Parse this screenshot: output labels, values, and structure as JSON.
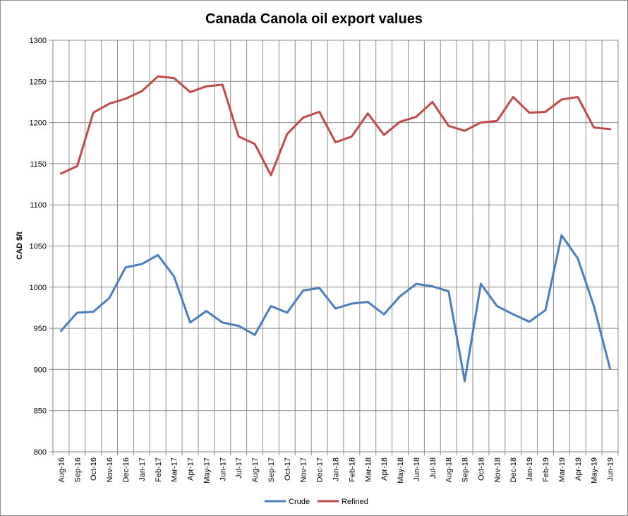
{
  "chart_data": {
    "type": "line",
    "title": "Canada Canola oil export values",
    "xlabel": "",
    "ylabel": "CAD $/t",
    "ylim": [
      800,
      1300
    ],
    "ytick_step": 50,
    "grid": true,
    "legend_position": "bottom-center",
    "categories": [
      "Aug-16",
      "Sep-16",
      "Oct-16",
      "Nov-16",
      "Dec-16",
      "Jan-17",
      "Feb-17",
      "Mar-17",
      "Apr-17",
      "May-17",
      "Jun-17",
      "Jul-17",
      "Aug-17",
      "Sep-17",
      "Oct-17",
      "Nov-17",
      "Dec-17",
      "Jan-18",
      "Feb-18",
      "Mar-18",
      "Apr-18",
      "May-18",
      "Jun-18",
      "Jul-18",
      "Aug-18",
      "Sep-18",
      "Oct-18",
      "Nov-18",
      "Dec-18",
      "Jan-19",
      "Feb-19",
      "Mar-19",
      "Apr-19",
      "May-19",
      "Jun-19"
    ],
    "series": [
      {
        "name": "Crude",
        "color": "#4a7ebb",
        "values": [
          947,
          969,
          970,
          987,
          1024,
          1028,
          1039,
          1013,
          957,
          971,
          957,
          953,
          942,
          977,
          969,
          996,
          999,
          974,
          980,
          982,
          967,
          989,
          1004,
          1001,
          995,
          886,
          1004,
          977,
          967,
          958,
          972,
          1063,
          1035,
          977,
          901
        ]
      },
      {
        "name": "Refined",
        "color": "#be4b48",
        "values": [
          1138,
          1147,
          1212,
          1223,
          1229,
          1238,
          1256,
          1254,
          1237,
          1244,
          1246,
          1183,
          1174,
          1136,
          1186,
          1206,
          1213,
          1176,
          1183,
          1211,
          1185,
          1201,
          1207,
          1225,
          1196,
          1190,
          1200,
          1202,
          1231,
          1212,
          1213,
          1228,
          1231,
          1194,
          1192
        ]
      }
    ]
  }
}
